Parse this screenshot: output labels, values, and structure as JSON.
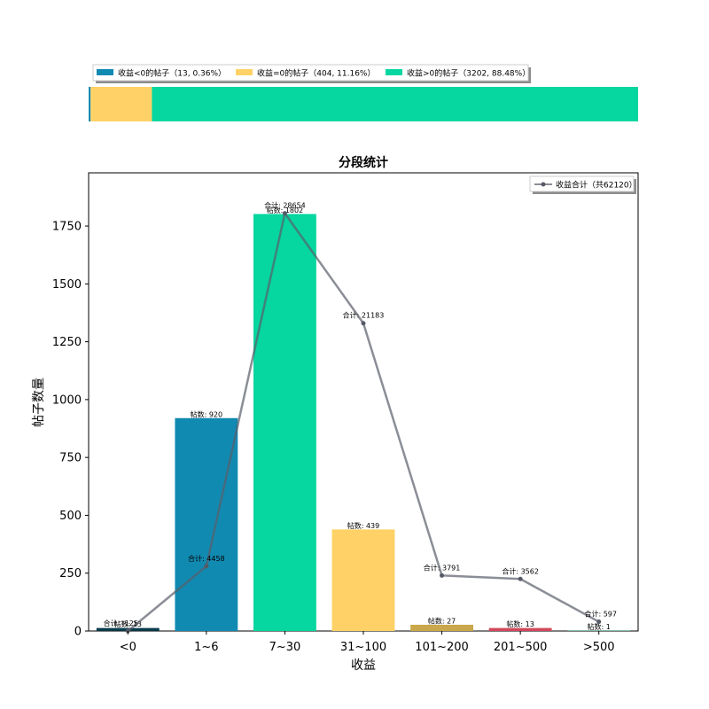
{
  "colors": {
    "negative": "#118ab2",
    "zero": "#ffd166",
    "positive": "#06d6a0",
    "line": "#8d8d96",
    "axis": "#000000"
  },
  "share_bar": {
    "legend": [
      {
        "label": "收益<0的帖子（13, 0.36%）",
        "color": "#118ab2"
      },
      {
        "label": "收益=0的帖子（404, 11.16%）",
        "color": "#ffd166"
      },
      {
        "label": "收益>0的帖子（3202, 88.48%）",
        "color": "#06d6a0"
      }
    ],
    "segments": [
      {
        "name": "negative",
        "count": 13,
        "percent": 0.36,
        "color": "#118ab2"
      },
      {
        "name": "zero",
        "count": 404,
        "percent": 11.16,
        "color": "#ffd166"
      },
      {
        "name": "positive",
        "count": 3202,
        "percent": 88.48,
        "color": "#06d6a0"
      }
    ]
  },
  "chart_data": {
    "type": "bar",
    "title": "分段统计",
    "xlabel": "收益",
    "ylabel": "帖子数量",
    "ylim": [
      0,
      1980
    ],
    "yticks": [
      0,
      250,
      500,
      750,
      1000,
      1250,
      1500,
      1750
    ],
    "grid": false,
    "legend_position": "top-right",
    "categories": [
      "<0",
      "1~6",
      "7~30",
      "31~100",
      "101~200",
      "201~500",
      ">500"
    ],
    "bar_colors": [
      "#073b4c",
      "#118ab2",
      "#06d6a0",
      "#ffd166",
      "#c9a74a",
      "#d1495b",
      "#06d6a0"
    ],
    "series": [
      {
        "kind": "bar",
        "values": [
          13,
          920,
          1802,
          439,
          27,
          13,
          1
        ],
        "labels": [
          "帖数: 13",
          "帖数: 920",
          "帖数: 1802",
          "帖数: 439",
          "帖数: 27",
          "帖数: 13",
          "帖数: 1"
        ]
      },
      {
        "kind": "line",
        "name": "收益合计（共62120）",
        "values": [
          0,
          280,
          1805,
          1330,
          240,
          225,
          40
        ],
        "labels": [
          "合计: -125",
          "合计: 4458",
          "合计: 28654",
          "合计: 21183",
          "合计: 3791",
          "合计: 3562",
          "合计: 597"
        ]
      }
    ]
  }
}
